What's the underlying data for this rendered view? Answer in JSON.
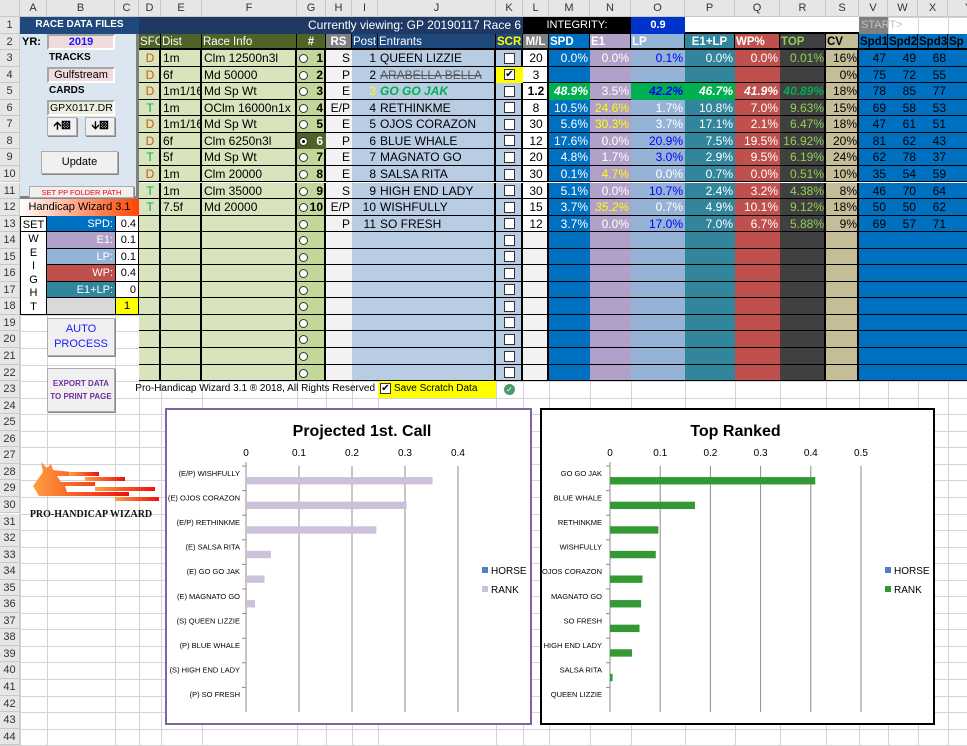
{
  "sheet": {
    "columns": [
      "A",
      "B",
      "C",
      "D",
      "E",
      "F",
      "G",
      "H",
      "I",
      "J",
      "K",
      "L",
      "M",
      "N",
      "O",
      "P",
      "Q",
      "R",
      "S",
      "V",
      "W",
      "X",
      "Y"
    ],
    "rows": [
      "1",
      "2",
      "3",
      "4",
      "5",
      "6",
      "7",
      "8",
      "9",
      "10",
      "11",
      "12",
      "13",
      "14",
      "15",
      "16",
      "17",
      "18",
      "19",
      "20",
      "21",
      "22",
      "23",
      "24",
      "25",
      "26",
      "27",
      "28",
      "29",
      "30",
      "31",
      "32",
      "33",
      "34",
      "35",
      "36",
      "37",
      "38",
      "39",
      "40",
      "41",
      "42",
      "43",
      "44"
    ]
  },
  "header": {
    "title": "Currently viewing: GP 20190117 Race 6",
    "integrity_label": "INTEGRITY:",
    "integrity_value": "0.9",
    "start": "START>"
  },
  "panel": {
    "title": "RACE DATA FILES",
    "yr_label": "YR:",
    "yr": "2019",
    "tracks_label": "TRACKS",
    "track": "Gulfstream",
    "cards_label": "CARDS",
    "card": "GPX0117.DRF",
    "prev_icon": "arrow-up-icon",
    "next_icon": "arrow-down-icon",
    "update": "Update",
    "set_pp": "SET PP FOLDER PATH",
    "wizard": "Handicap Wizard 3.1"
  },
  "weights": {
    "set": "SET",
    "letters": [
      "W",
      "E",
      "I",
      "G",
      "H",
      "T"
    ],
    "items": [
      {
        "label": "SPD:",
        "value": "0.4",
        "color": "#0070c0"
      },
      {
        "label": "E1:",
        "value": "0.1",
        "color": "#b1a0c7"
      },
      {
        "label": "LP:",
        "value": "0.1",
        "color": "#95b3d7"
      },
      {
        "label": "WP:",
        "value": "0.4",
        "color": "#c0504d"
      },
      {
        "label": "E1+LP:",
        "value": "0",
        "color": "#31859c"
      }
    ],
    "total": "1"
  },
  "buttons": {
    "auto_process": "AUTO PROCESS",
    "export": "EXPORT DATA TO PRINT PAGE"
  },
  "columns": {
    "sfc": "SFC",
    "dist": "Dist",
    "info": "Race Info",
    "num": "#",
    "rs": "RS",
    "post": "Post",
    "entrants": "Entrants",
    "scr": "SCR",
    "ml": "M/L",
    "spd": "SPD",
    "e1": "E1",
    "lp": "LP",
    "e1lp": "E1+LP",
    "wp": "WP%",
    "top": "TOP",
    "cv": "CV",
    "spd1": "Spd1",
    "spd2": "Spd2",
    "spd3": "Spd3",
    "spd4": "Sp"
  },
  "races": [
    {
      "sfc": "D",
      "dist": "1m",
      "info": "Clm 12500n3l",
      "num": "1",
      "selected": false
    },
    {
      "sfc": "D",
      "dist": "6f",
      "info": "Md 50000",
      "num": "2",
      "selected": false
    },
    {
      "sfc": "D",
      "dist": "1m1/16",
      "info": "Md Sp Wt",
      "num": "3",
      "selected": false
    },
    {
      "sfc": "T",
      "dist": "1m",
      "info": "OClm 16000n1x",
      "num": "4",
      "selected": false
    },
    {
      "sfc": "D",
      "dist": "1m1/16",
      "info": "Md Sp Wt",
      "num": "5",
      "selected": false
    },
    {
      "sfc": "D",
      "dist": "6f",
      "info": "Clm 6250n3l",
      "num": "6",
      "selected": true
    },
    {
      "sfc": "T",
      "dist": "5f",
      "info": "Md Sp Wt",
      "num": "7",
      "selected": false
    },
    {
      "sfc": "D",
      "dist": "1m",
      "info": "Clm 20000",
      "num": "8",
      "selected": false
    },
    {
      "sfc": "T",
      "dist": "1m",
      "info": "Clm 35000",
      "num": "9",
      "selected": false
    },
    {
      "sfc": "T",
      "dist": "7.5f",
      "info": "Md 20000",
      "num": "10",
      "selected": false
    }
  ],
  "entrants": [
    {
      "rs": "S",
      "post": "1",
      "name": "QUEEN LIZZIE",
      "scr": false,
      "ml": "20",
      "spd": "0.0%",
      "e1": "0.0%",
      "lp": "0.1%",
      "e1lp": "0.0%",
      "wp": "0.0%",
      "top": "0.01%",
      "cv": "16%",
      "s1": "47",
      "s2": "49",
      "s3": "68",
      "e1_color": "#ffffff",
      "lp_color": "#0000ff"
    },
    {
      "rs": "P",
      "post": "2",
      "name": "ARABELLA BELLA",
      "scr": true,
      "ml": "3",
      "spd": "",
      "e1": "",
      "lp": "",
      "e1lp": "",
      "wp": "",
      "top": "",
      "cv": "0%",
      "s1": "75",
      "s2": "72",
      "s3": "55",
      "e1_color": "#ffffff",
      "lp_color": "#ffffff"
    },
    {
      "rs": "E",
      "post": "3",
      "name": "GO GO JAK",
      "scr": false,
      "ml": "1.2",
      "spd": "48.9%",
      "e1": "3.5%",
      "lp": "42.2%",
      "e1lp": "46.7%",
      "wp": "41.9%",
      "top": "40.89%",
      "cv": "18%",
      "s1": "78",
      "s2": "85",
      "s3": "77",
      "e1_color": "#ffffff",
      "lp_color": "#0000ff",
      "top_pick": true
    },
    {
      "rs": "E/P",
      "post": "4",
      "name": "RETHINKME",
      "scr": false,
      "ml": "8",
      "spd": "10.5%",
      "e1": "24.6%",
      "lp": "1.7%",
      "e1lp": "10.8%",
      "wp": "7.0%",
      "top": "9.63%",
      "cv": "15%",
      "s1": "69",
      "s2": "58",
      "s3": "53",
      "e1_color": "#ffff00",
      "lp_color": "#ffffff"
    },
    {
      "rs": "E",
      "post": "5",
      "name": "OJOS CORAZON",
      "scr": false,
      "ml": "30",
      "spd": "5.6%",
      "e1": "30.3%",
      "lp": "3.7%",
      "e1lp": "17.1%",
      "wp": "2.1%",
      "top": "6.47%",
      "cv": "18%",
      "s1": "47",
      "s2": "61",
      "s3": "51",
      "e1_color": "#ffff00",
      "lp_color": "#ffffff"
    },
    {
      "rs": "P",
      "post": "6",
      "name": "BLUE WHALE",
      "scr": false,
      "ml": "12",
      "spd": "17.6%",
      "e1": "0.0%",
      "lp": "20.9%",
      "e1lp": "7.5%",
      "wp": "19.5%",
      "top": "16.92%",
      "cv": "20%",
      "s1": "81",
      "s2": "62",
      "s3": "43",
      "e1_color": "#ffffff",
      "lp_color": "#0000ff"
    },
    {
      "rs": "E",
      "post": "7",
      "name": "MAGNATO GO",
      "scr": false,
      "ml": "20",
      "spd": "4.8%",
      "e1": "1.7%",
      "lp": "3.0%",
      "e1lp": "2.9%",
      "wp": "9.5%",
      "top": "6.19%",
      "cv": "24%",
      "s1": "62",
      "s2": "78",
      "s3": "37",
      "e1_color": "#ffffff",
      "lp_color": "#0000ff"
    },
    {
      "rs": "E",
      "post": "8",
      "name": "SALSA RITA",
      "scr": false,
      "ml": "30",
      "spd": "0.1%",
      "e1": "4.7%",
      "lp": "0.0%",
      "e1lp": "0.7%",
      "wp": "0.0%",
      "top": "0.51%",
      "cv": "10%",
      "s1": "35",
      "s2": "54",
      "s3": "59",
      "e1_color": "#ffff00",
      "lp_color": "#ffffff"
    },
    {
      "rs": "S",
      "post": "9",
      "name": "HIGH END LADY",
      "scr": false,
      "ml": "30",
      "spd": "5.1%",
      "e1": "0.0%",
      "lp": "10.7%",
      "e1lp": "2.4%",
      "wp": "3.2%",
      "top": "4.38%",
      "cv": "8%",
      "s1": "46",
      "s2": "70",
      "s3": "64",
      "e1_color": "#ffffff",
      "lp_color": "#0000ff"
    },
    {
      "rs": "E/P",
      "post": "10",
      "name": "WISHFULLY",
      "scr": false,
      "ml": "15",
      "spd": "3.7%",
      "e1": "35.2%",
      "lp": "0.7%",
      "e1lp": "4.9%",
      "wp": "10.1%",
      "top": "9.12%",
      "cv": "18%",
      "s1": "50",
      "s2": "50",
      "s3": "62",
      "e1_color": "#ffff00",
      "lp_color": "#ffffff"
    },
    {
      "rs": "P",
      "post": "11",
      "name": "SO FRESH",
      "scr": false,
      "ml": "12",
      "spd": "3.7%",
      "e1": "0.0%",
      "lp": "17.0%",
      "e1lp": "7.0%",
      "wp": "6.7%",
      "top": "5.88%",
      "cv": "9%",
      "s1": "69",
      "s2": "57",
      "s3": "71",
      "e1_color": "#ffffff",
      "lp_color": "#0000ff"
    }
  ],
  "footer": {
    "copyright": "Pro-Handicap Wizard 3.1 ® 2018, All Rights Reserved",
    "save_scratch": "Save Scratch Data",
    "save_scratch_checked": true,
    "ok_icon": "check-circle-icon"
  },
  "logo": {
    "text": "PRO-HANDICAP WIZARD"
  },
  "chart_data": [
    {
      "type": "bar",
      "orientation": "horizontal",
      "title": "Projected 1st. Call",
      "categories": [
        "(E/P) WISHFULLY",
        "(E) OJOS CORAZON",
        "(E/P) RETHINKME",
        "(E) SALSA RITA",
        "(E) GO GO JAK",
        "(E) MAGNATO GO",
        "(S) QUEEN LIZZIE",
        "(P) BLUE WHALE",
        "(S) HIGH END LADY",
        "(P) SO FRESH"
      ],
      "series": [
        {
          "name": "HORSE",
          "color": "#4f81bd",
          "values": [
            0,
            0,
            0,
            0,
            0,
            0,
            0,
            0,
            0,
            0
          ]
        },
        {
          "name": "RANK",
          "color": "#ccc0da",
          "values": [
            0.352,
            0.303,
            0.246,
            0.047,
            0.035,
            0.017,
            0,
            0,
            0,
            0
          ]
        }
      ],
      "xlim": [
        0,
        0.4
      ],
      "ticks": [
        "0",
        "0.1",
        "0.2",
        "0.3",
        "0.4"
      ],
      "tick_values": [
        0,
        0.1,
        0.2,
        0.3,
        0.4
      ],
      "grid": true,
      "legend": "right",
      "border_color": "#8064a2"
    },
    {
      "type": "bar",
      "orientation": "horizontal",
      "title": "Top Ranked",
      "categories": [
        "GO GO JAK",
        "BLUE WHALE",
        "RETHINKME",
        "WISHFULLY",
        "OJOS CORAZON",
        "MAGNATO GO",
        "SO FRESH",
        "HIGH END LADY",
        "SALSA RITA",
        "QUEEN LIZZIE"
      ],
      "series": [
        {
          "name": "HORSE",
          "color": "#4f81bd",
          "values": [
            0,
            0,
            0,
            0,
            0,
            0,
            0,
            0,
            0,
            0
          ]
        },
        {
          "name": "RANK",
          "color": "#339933",
          "values": [
            0.4089,
            0.1692,
            0.0963,
            0.0912,
            0.0647,
            0.0619,
            0.0588,
            0.0438,
            0.0051,
            0.0001
          ]
        }
      ],
      "xlim": [
        0,
        0.5
      ],
      "ticks": [
        "0",
        "0.1",
        "0.2",
        "0.3",
        "0.4",
        "0.5"
      ],
      "tick_values": [
        0,
        0.1,
        0.2,
        0.3,
        0.4,
        0.5
      ],
      "grid": true,
      "legend": "right",
      "border_color": "#000000"
    }
  ]
}
